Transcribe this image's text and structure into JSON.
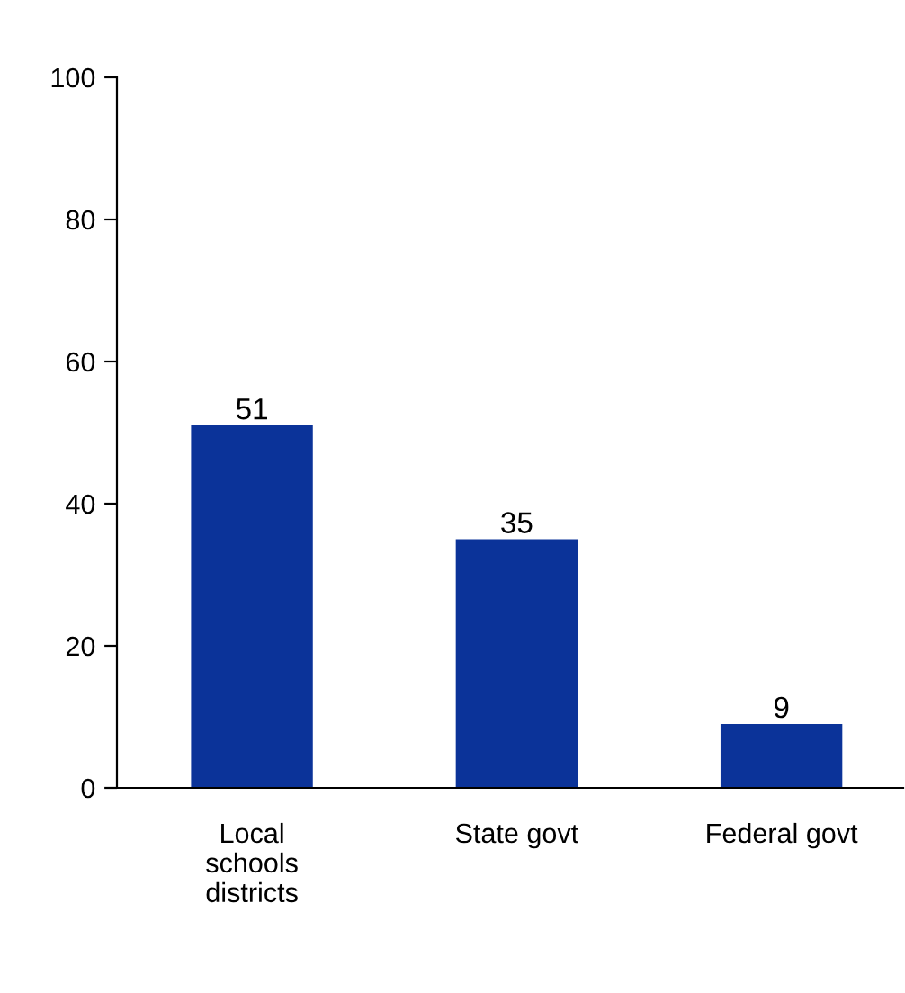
{
  "chart_data": {
    "type": "bar",
    "categories": [
      "Local schools districts",
      "State govt",
      "Federal govt"
    ],
    "values": [
      51,
      35,
      9
    ],
    "color": "#0b3399",
    "ylim": [
      0,
      100
    ],
    "yticks": [
      0,
      20,
      40,
      60,
      80,
      100
    ],
    "grid": false,
    "data_labels": true
  }
}
